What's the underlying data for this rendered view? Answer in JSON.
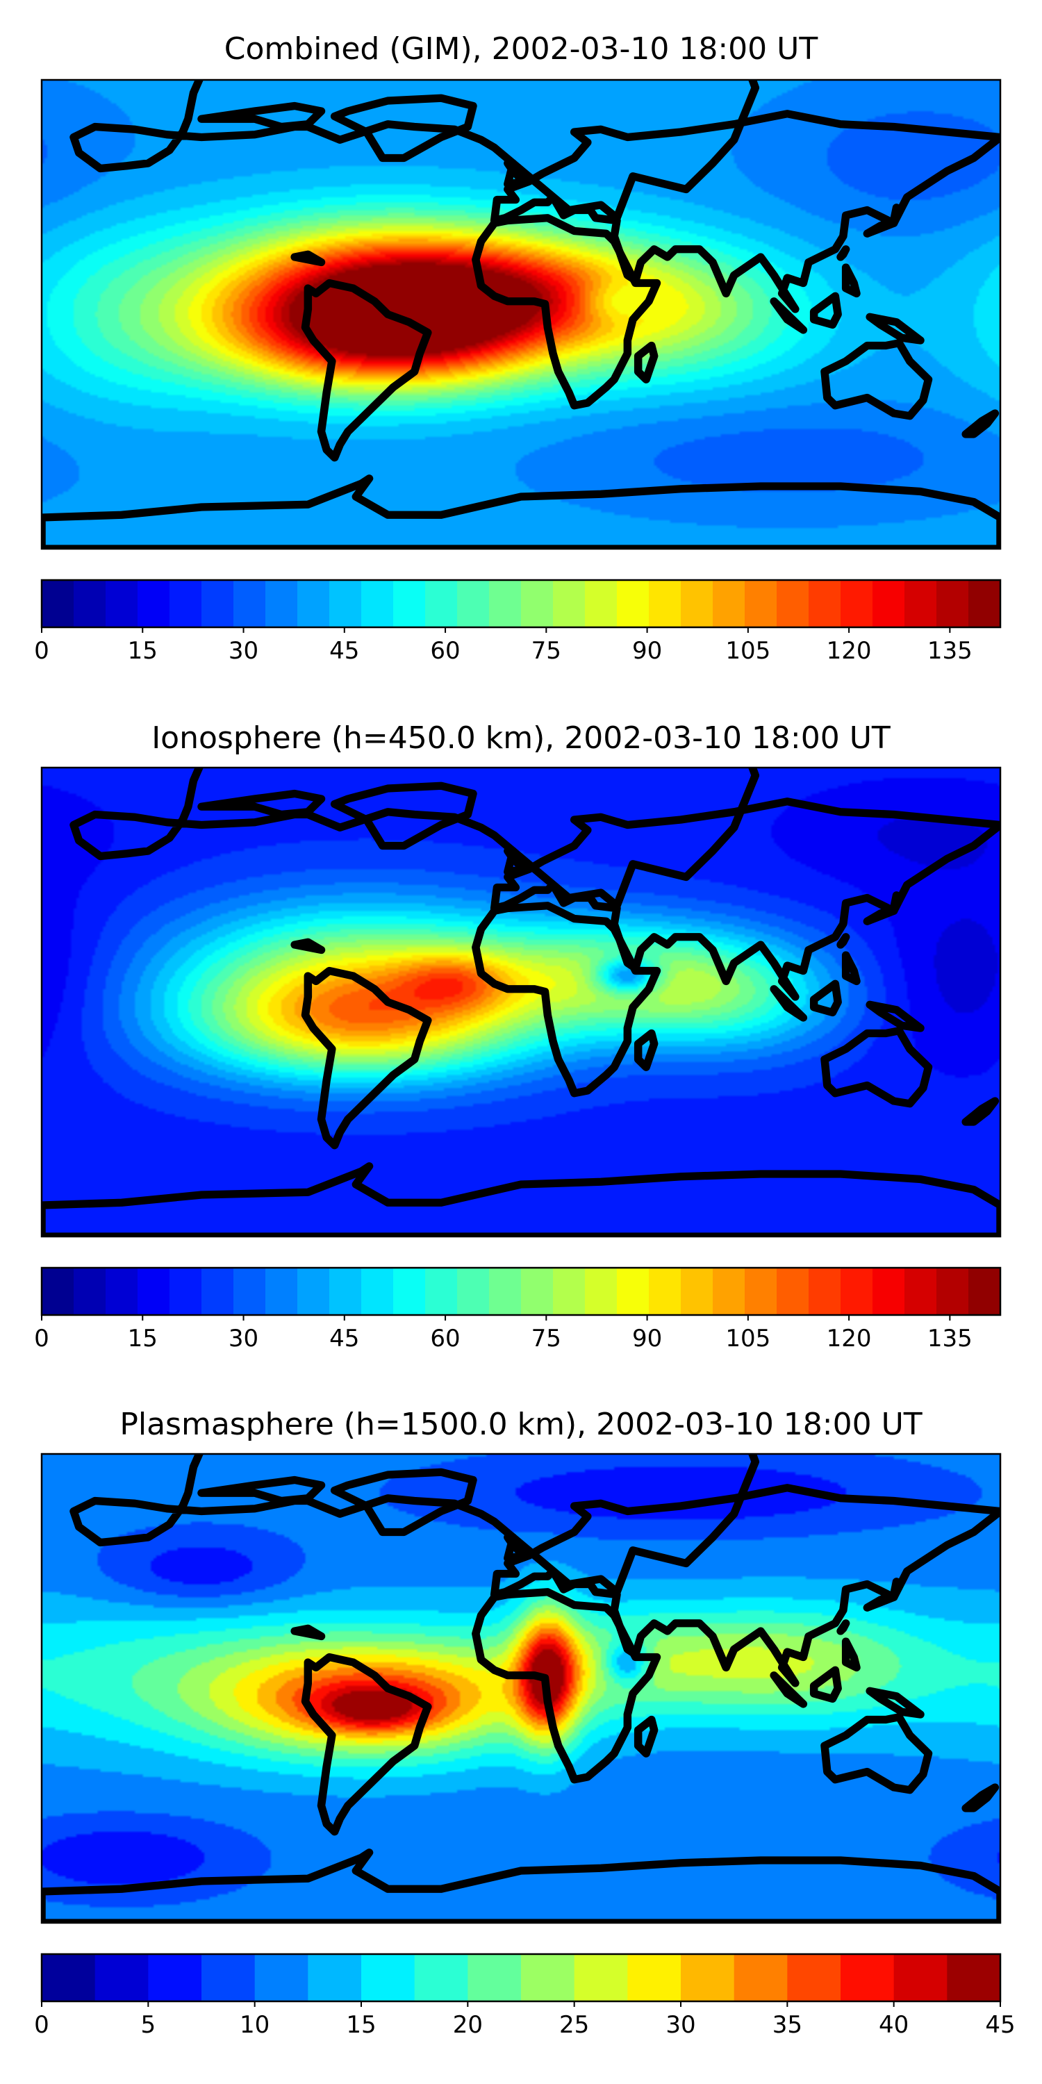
{
  "panels": [
    {
      "id": "combined",
      "title": "Combined (GIM), 2002-03-10 18:00 UT",
      "colorbar": {
        "vmin": 0,
        "vmax": 142.5,
        "levels": 30,
        "ticks": [
          "0",
          "15",
          "30",
          "45",
          "60",
          "75",
          "90",
          "105",
          "120",
          "135"
        ]
      },
      "field": {
        "background": 40,
        "blobs": [
          {
            "lon": -55,
            "lat": 10,
            "value": 80,
            "sx": 45,
            "sy": 18
          },
          {
            "lon": -50,
            "lat": -10,
            "value": 70,
            "sx": 45,
            "sy": 15
          },
          {
            "lon": 0,
            "lat": 10,
            "value": 45,
            "sx": 40,
            "sy": 15
          },
          {
            "lon": 60,
            "lat": 0,
            "value": 30,
            "sx": 35,
            "sy": 18
          },
          {
            "lon": 35,
            "lat": 5,
            "value": -20,
            "sx": 10,
            "sy": 6
          },
          {
            "lon": -150,
            "lat": 0,
            "value": 15,
            "sx": 30,
            "sy": 25
          },
          {
            "lon": 150,
            "lat": 60,
            "value": -10,
            "sx": 40,
            "sy": 20
          },
          {
            "lon": 100,
            "lat": -55,
            "value": -10,
            "sx": 60,
            "sy": 15
          }
        ]
      }
    },
    {
      "id": "ionosphere",
      "title": "Ionosphere  (h=450.0 km), 2002-03-10 18:00 UT",
      "colorbar": {
        "vmin": 0,
        "vmax": 142.5,
        "levels": 30,
        "ticks": [
          "0",
          "15",
          "30",
          "45",
          "60",
          "75",
          "90",
          "105",
          "120",
          "135"
        ]
      },
      "field": {
        "background": 22,
        "blobs": [
          {
            "lon": -60,
            "lat": 10,
            "value": 55,
            "sx": 50,
            "sy": 20
          },
          {
            "lon": -60,
            "lat": -10,
            "value": 50,
            "sx": 45,
            "sy": 15
          },
          {
            "lon": -25,
            "lat": 8,
            "value": 25,
            "sx": 15,
            "sy": 8
          },
          {
            "lon": 40,
            "lat": 10,
            "value": 45,
            "sx": 40,
            "sy": 15
          },
          {
            "lon": 40,
            "lat": 10,
            "value": -45,
            "sx": 9,
            "sy": 5
          },
          {
            "lon": 80,
            "lat": 0,
            "value": 25,
            "sx": 30,
            "sy": 15
          },
          {
            "lon": 170,
            "lat": 10,
            "value": -12,
            "sx": 25,
            "sy": 25
          },
          {
            "lon": 150,
            "lat": 65,
            "value": -8,
            "sx": 40,
            "sy": 15
          }
        ]
      }
    },
    {
      "id": "plasmasphere",
      "title": "Plasmasphere (h=1500.0 km), 2002-03-10 18:00 UT",
      "colorbar": {
        "vmin": 0,
        "vmax": 45,
        "levels": 18,
        "ticks": [
          "0",
          "5",
          "10",
          "15",
          "20",
          "25",
          "30",
          "35",
          "40",
          "45"
        ]
      },
      "field": {
        "background": 11,
        "blobs": [
          {
            "lon": -120,
            "lat": 5,
            "value": 8,
            "sx": 80,
            "sy": 20
          },
          {
            "lon": -55,
            "lat": -5,
            "value": 22,
            "sx": 40,
            "sy": 15
          },
          {
            "lon": -55,
            "lat": -8,
            "value": 10,
            "sx": 15,
            "sy": 6
          },
          {
            "lon": 10,
            "lat": 5,
            "value": 24,
            "sx": 8,
            "sy": 18
          },
          {
            "lon": 50,
            "lat": 10,
            "value": 12,
            "sx": 40,
            "sy": 15
          },
          {
            "lon": 40,
            "lat": 10,
            "value": -12,
            "sx": 6,
            "sy": 6
          },
          {
            "lon": 110,
            "lat": 10,
            "value": 8,
            "sx": 30,
            "sy": 15
          },
          {
            "lon": -120,
            "lat": 45,
            "value": -6,
            "sx": 25,
            "sy": 10
          },
          {
            "lon": 60,
            "lat": 75,
            "value": -6,
            "sx": 60,
            "sy": 10
          },
          {
            "lon": -150,
            "lat": -65,
            "value": -6,
            "sx": 30,
            "sy": 10
          }
        ]
      }
    }
  ],
  "colormap": "jet",
  "coastline_color": "#000000"
}
